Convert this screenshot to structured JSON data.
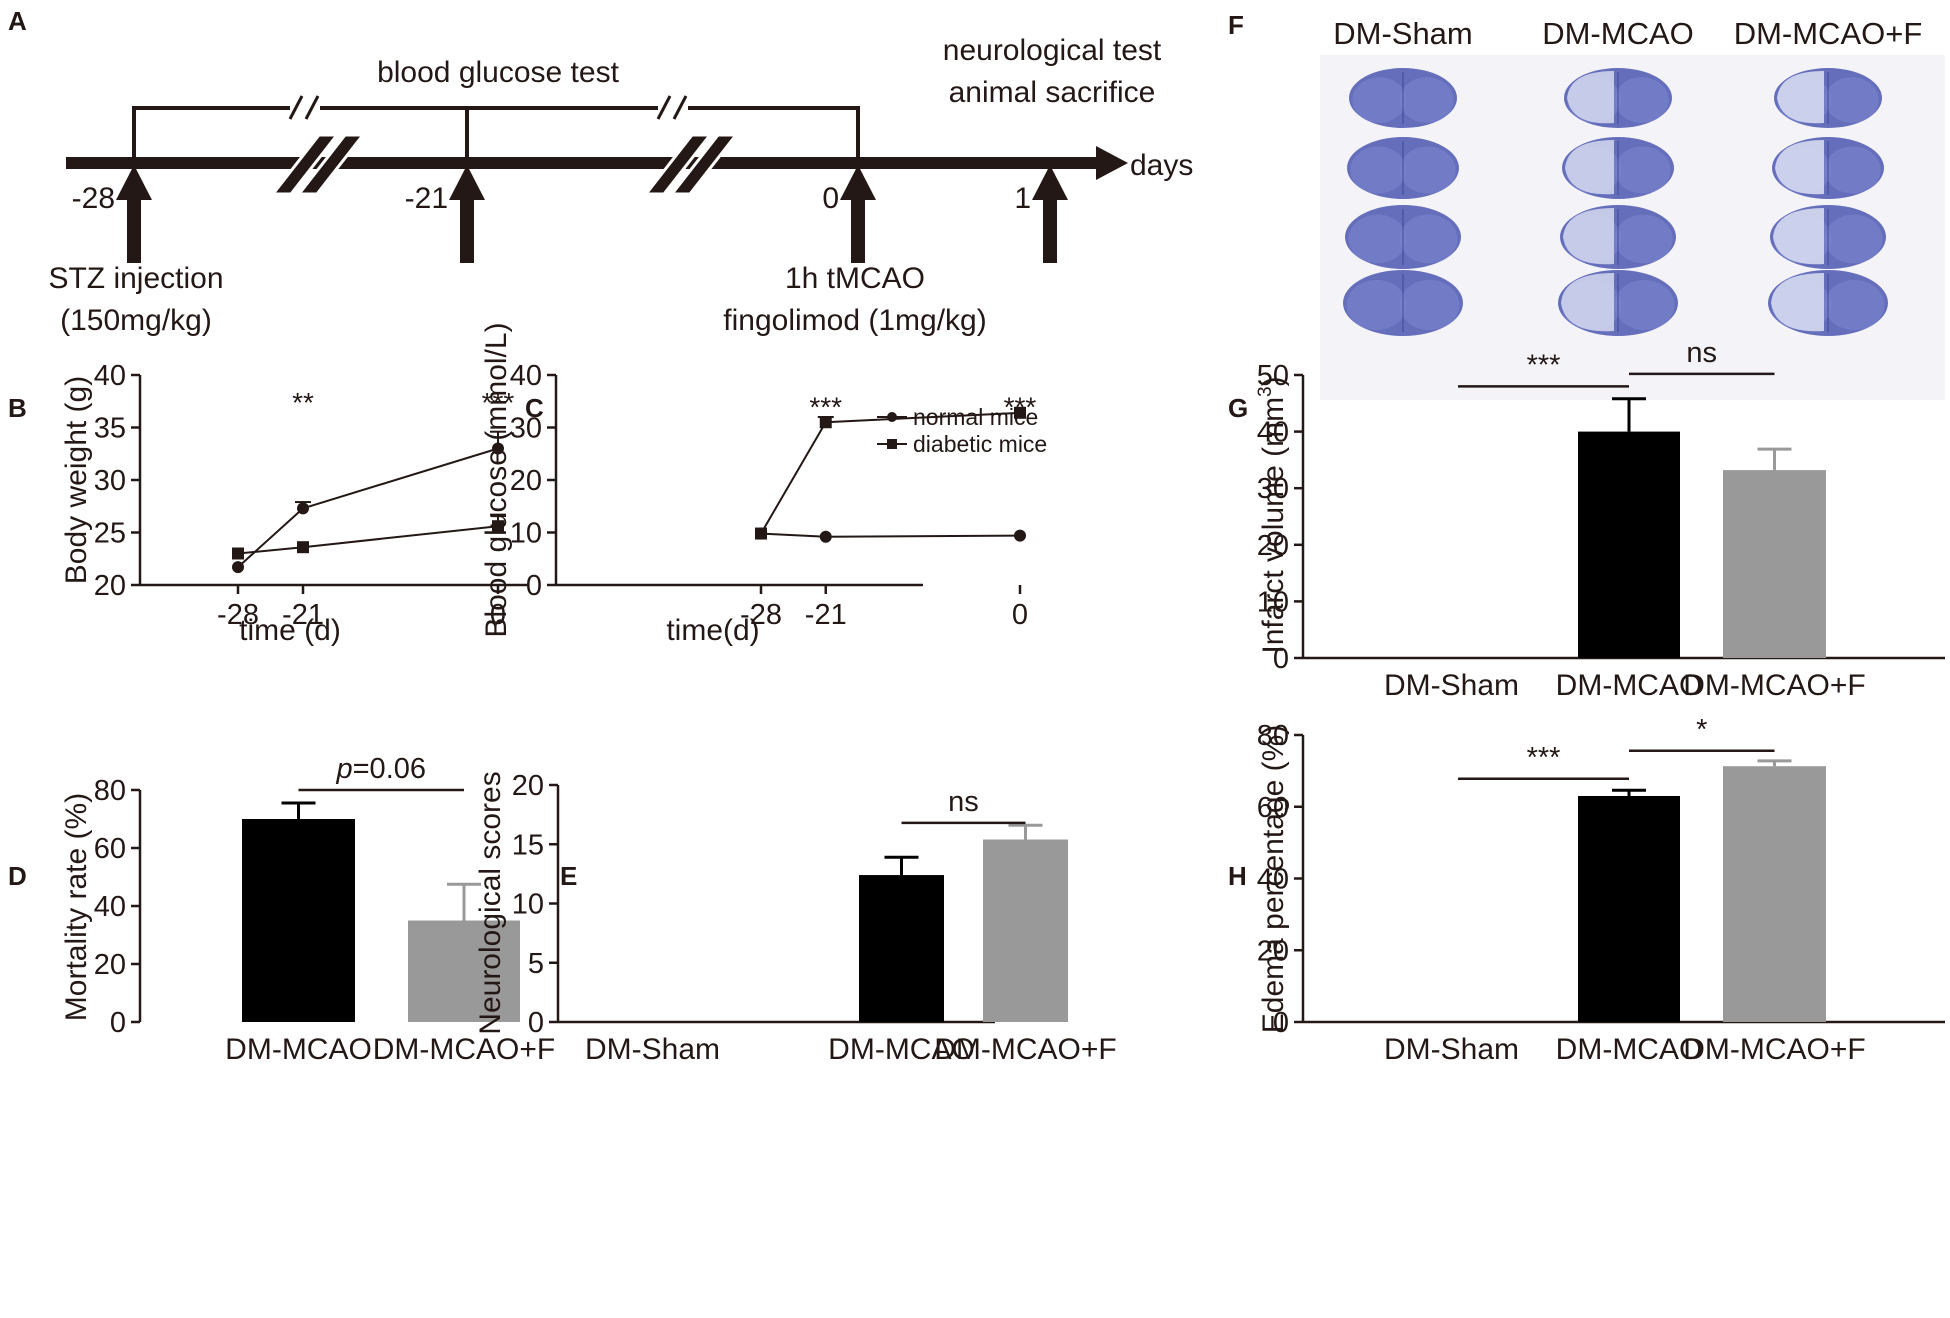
{
  "panels": {
    "A": {
      "letter": "A",
      "top_label": "blood glucose test",
      "right_label_1": "neurological test",
      "right_label_2": "animal sacrifice",
      "axis_unit": "days",
      "days": [
        "-28",
        "-21",
        "0",
        "1"
      ],
      "under_1a": "STZ injection",
      "under_1b": "(150mg/kg)",
      "under_2a": "1h tMCAO",
      "under_2b": "fingolimod (1mg/kg)"
    },
    "B": {
      "letter": "B"
    },
    "C": {
      "letter": "C"
    },
    "D": {
      "letter": "D"
    },
    "E": {
      "letter": "E"
    },
    "F": {
      "letter": "F",
      "columns": [
        "DM-Sham",
        "DM-MCAO",
        "DM-MCAO+F"
      ],
      "rows": 4,
      "colors": {
        "stain": "#4b56b0",
        "stain_light": "#7c87d0",
        "stain_pale": "#d5d9f0",
        "background": "#f3f3f8"
      }
    },
    "G": {
      "letter": "G"
    },
    "H": {
      "letter": "H"
    }
  },
  "chart_data": [
    {
      "id": "B",
      "type": "line",
      "title": "",
      "xlabel": "time (d)",
      "ylabel": "Body weight (g)",
      "x": [
        -28,
        -21,
        0
      ],
      "xticks": [
        "-28",
        "-21",
        "0"
      ],
      "yticks": [
        20,
        25,
        30,
        35,
        40
      ],
      "ylim": [
        20,
        40
      ],
      "series": [
        {
          "name": "normal mice",
          "marker": "circle",
          "values": [
            21.7,
            27.3,
            33.0
          ],
          "errors": [
            0,
            0.6,
            1.6
          ]
        },
        {
          "name": "diabetic mice",
          "marker": "square",
          "values": [
            23.0,
            23.6,
            25.6
          ],
          "errors": [
            0,
            0,
            1.1
          ]
        }
      ],
      "annotations": [
        {
          "x": -21,
          "y": 38.2,
          "text": "**"
        },
        {
          "x": 0,
          "y": 38.2,
          "text": "***"
        }
      ]
    },
    {
      "id": "C",
      "type": "line",
      "title": "",
      "xlabel": "time(d)",
      "ylabel": "Blood glucose (mmol/L)",
      "x": [
        -28,
        -21,
        0
      ],
      "xticks": [
        "-28",
        "-21",
        "0"
      ],
      "yticks": [
        0,
        10,
        20,
        30,
        40
      ],
      "ylim": [
        0,
        40
      ],
      "series": [
        {
          "name": "normal mice",
          "marker": "circle",
          "values": [
            9.8,
            9.2,
            9.4
          ],
          "errors": [
            0,
            0,
            0
          ]
        },
        {
          "name": "diabetic mice",
          "marker": "square",
          "values": [
            9.8,
            31.0,
            32.8
          ],
          "errors": [
            0,
            1.0,
            0
          ]
        }
      ],
      "legend": {
        "position": "top-right",
        "entries": [
          "normal mice",
          "diabetic mice"
        ]
      },
      "annotations": [
        {
          "x": -21,
          "y": 35.5,
          "text": "***"
        },
        {
          "x": 0,
          "y": 35.5,
          "text": "***"
        }
      ]
    },
    {
      "id": "D",
      "type": "bar",
      "title": "",
      "xlabel": "",
      "ylabel": "Mortality rate (%)",
      "categories": [
        "DM-MCAO",
        "DM-MCAO+F"
      ],
      "values": [
        70,
        35
      ],
      "errors": [
        5.5,
        12.5
      ],
      "colors": [
        "#000000",
        "#999999"
      ],
      "yticks": [
        0,
        20,
        40,
        60,
        80
      ],
      "ylim": [
        0,
        80
      ],
      "significance": [
        {
          "from": 0,
          "to": 1,
          "y": 80,
          "italic": "p",
          "text": "=0.06"
        }
      ]
    },
    {
      "id": "E",
      "type": "bar",
      "title": "",
      "xlabel": "",
      "ylabel": "Neurological scores",
      "categories": [
        "DM-Sham",
        "DM-MCAO",
        "DM-MCAO+F"
      ],
      "values": [
        0,
        12.4,
        15.4
      ],
      "errors": [
        0,
        1.5,
        1.2
      ],
      "colors": [
        "#000000",
        "#000000",
        "#999999"
      ],
      "yticks": [
        0,
        5,
        10,
        15,
        20
      ],
      "ylim": [
        0,
        20
      ],
      "significance": [
        {
          "from": 1,
          "to": 2,
          "y": 16.8,
          "text": "ns"
        }
      ]
    },
    {
      "id": "G",
      "type": "bar",
      "title": "",
      "xlabel": "",
      "ylabel": "Infarct volume (mm",
      "ylabel_sup": "3",
      "ylabel_end": ")",
      "categories": [
        "DM-Sham",
        "DM-MCAO",
        "DM-MCAO+F"
      ],
      "values": [
        0,
        40,
        33.2
      ],
      "errors": [
        0,
        5.8,
        3.7
      ],
      "colors": [
        "#000000",
        "#000000",
        "#999999"
      ],
      "yticks": [
        0,
        10,
        20,
        30,
        40,
        50
      ],
      "ylim": [
        0,
        50
      ],
      "significance": [
        {
          "from": 0,
          "to": 1,
          "y": 48,
          "text": "***"
        },
        {
          "from": 1,
          "to": 2,
          "y": 50.2,
          "text": "ns"
        }
      ]
    },
    {
      "id": "H",
      "type": "bar",
      "title": "",
      "xlabel": "",
      "ylabel": "Edema percentage (%)",
      "categories": [
        "DM-Sham",
        "DM-MCAO",
        "DM-MCAO+F"
      ],
      "values": [
        0,
        63,
        71.3
      ],
      "errors": [
        0,
        1.6,
        1.5
      ],
      "colors": [
        "#000000",
        "#000000",
        "#999999"
      ],
      "yticks": [
        0,
        20,
        40,
        60,
        80
      ],
      "ylim": [
        0,
        80
      ],
      "significance": [
        {
          "from": 0,
          "to": 1,
          "y": 67.8,
          "text": "***"
        },
        {
          "from": 1,
          "to": 2,
          "y": 75.6,
          "text": "*"
        }
      ]
    }
  ]
}
